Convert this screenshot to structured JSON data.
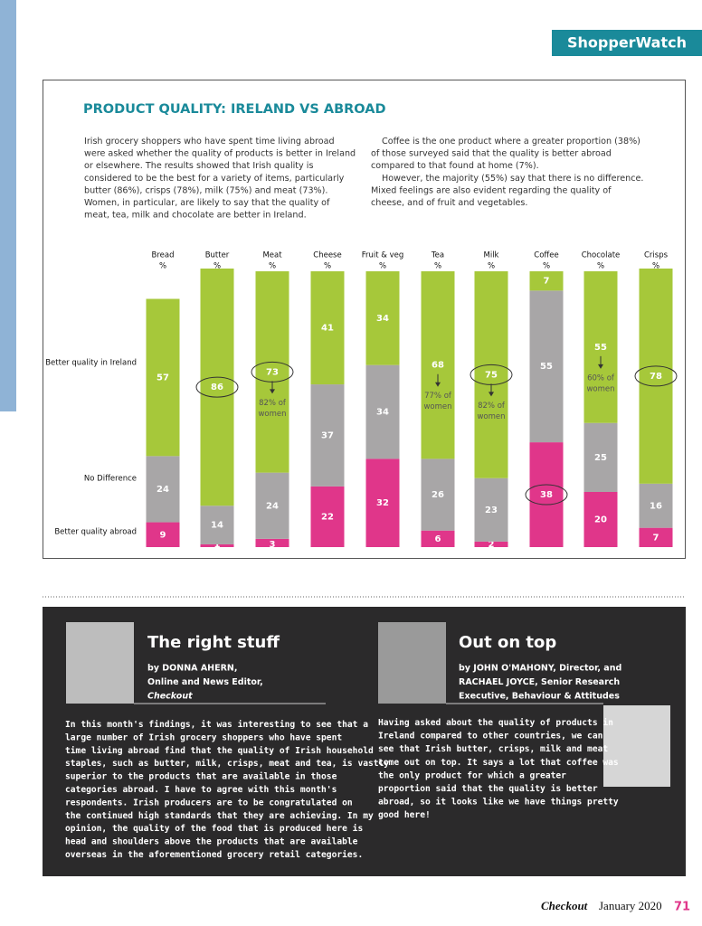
{
  "header": {
    "section": "ShopperWatch",
    "title": "PRODUCT QUALITY: IRELAND VS ABROAD"
  },
  "intro": {
    "left": [
      "Irish grocery shoppers who have spent time living abroad",
      "were asked whether the quality of products is better in Ireland",
      "or elsewhere. The results showed that Irish quality is",
      "considered to be the best for a variety of items, particularly",
      "butter (86%), crisps (78%), milk (75%) and meat (73%).",
      "Women, in particular, are likely to say that the quality of",
      "meat, tea, milk and chocolate are better in Ireland."
    ],
    "right": [
      "Coffee is the one product where a greater proportion (38%)",
      "of those surveyed said that the quality is better abroad",
      "compared to that found at home (7%).",
      "However, the majority (55%) say that there is no difference.",
      "Mixed feelings are also evident regarding the quality of",
      "cheese, and of fruit and vegetables."
    ]
  },
  "chart_data": {
    "type": "stacked-bar",
    "unit": "%",
    "categories": [
      "Bread",
      "Butter",
      "Meat",
      "Cheese",
      "Fruit & veg",
      "Tea",
      "Milk",
      "Coffee",
      "Chocolate",
      "Crisps"
    ],
    "ylim": [
      0,
      100
    ],
    "series": [
      {
        "name": "Better quality abroad",
        "color": "#e0368a",
        "values": [
          9,
          1,
          3,
          22,
          32,
          6,
          2,
          38,
          20,
          7
        ]
      },
      {
        "name": "No Difference",
        "color": "#a8a6a7",
        "values": [
          24,
          14,
          24,
          37,
          34,
          26,
          23,
          55,
          25,
          16
        ]
      },
      {
        "name": "Better quality in Ireland",
        "color": "#a6c83a",
        "values": [
          57,
          86,
          73,
          41,
          34,
          68,
          75,
          7,
          55,
          78
        ]
      }
    ],
    "annotations": [
      null,
      null,
      [
        "82% of",
        "women"
      ],
      null,
      null,
      [
        "77% of",
        "women"
      ],
      [
        "82% of",
        "women"
      ],
      null,
      [
        "60% of",
        "women"
      ],
      null
    ]
  },
  "columns": [
    {
      "heading": "The right stuff",
      "byline": [
        "by DONNA AHERN,",
        "Online and News Editor,",
        "Checkout"
      ],
      "body": [
        "In this month's findings, it was interesting to see that a",
        "large number of Irish grocery shoppers who have spent",
        "time living abroad find that the quality of Irish household",
        "staples, such as butter, milk, crisps, meat and tea, is vastly",
        "superior to the products that are available in those",
        "categories abroad. I have to agree with this month's",
        "respondents. Irish producers are to be congratulated on",
        "the continued high standards that they are achieving. In my",
        "opinion, the quality of the food that is produced here is",
        "head and shoulders above the products that are available",
        "overseas in the aforementioned grocery retail categories."
      ]
    },
    {
      "heading": "Out on top",
      "byline": [
        "by JOHN O'MAHONY, Director, and",
        "RACHAEL JOYCE, Senior Research",
        "Executive, Behaviour & Attitudes"
      ],
      "body": [
        "Having asked about the quality of products in",
        "Ireland compared to other countries, we can",
        "see that Irish butter, crisps, milk and meat",
        "come out on top. It says a lot that coffee was",
        "the only product for which a greater",
        "proportion said that the quality is better",
        "abroad, so it looks like we have things pretty",
        "good here!"
      ]
    }
  ],
  "footer": {
    "magazine": "Checkout",
    "date": "January 2020",
    "page": "71"
  }
}
